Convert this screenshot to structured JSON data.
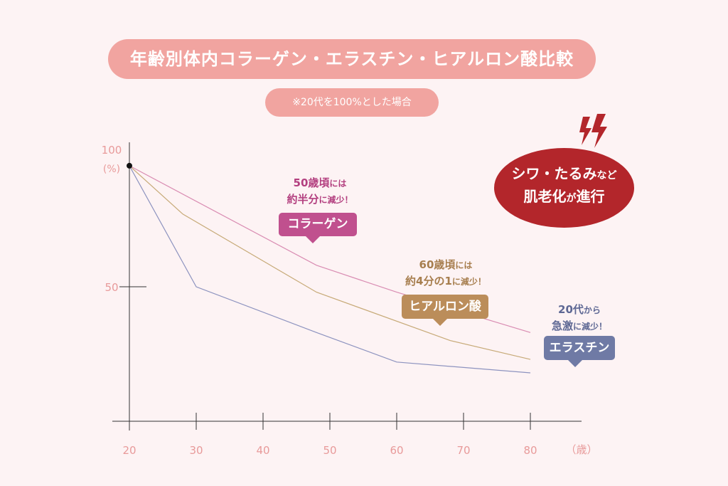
{
  "header": {
    "title": "年齢別体内コラーゲン・エラスチン・ヒアルロン酸比較",
    "subtitle": "※20代を100%とした場合"
  },
  "badge": {
    "line1_a": "シワ・たるみ",
    "line1_b": "など",
    "line2_a": "肌老化",
    "line2_b": "が",
    "line2_c": "進行",
    "color": "#b3262b"
  },
  "callouts": {
    "collagen": {
      "line1_a": "50歳頃",
      "line1_b": "には",
      "line2_a": "約半分",
      "line2_b": "に減少！",
      "label": "コラーゲン",
      "color": "#c0508e",
      "text_color": "#b33f7f"
    },
    "hyaluronic": {
      "line1_a": "60歳頃",
      "line1_b": "には",
      "line2_a": "約4分の1",
      "line2_b": "に減少！",
      "label": "ヒアルロン酸",
      "color": "#bb8d5a",
      "text_color": "#a77e4e"
    },
    "elastin": {
      "line1_a": "20代",
      "line1_b": "から",
      "line2_a": "急激",
      "line2_b": "に減少！",
      "label": "エラスチン",
      "color": "#6f7aa5",
      "text_color": "#5e6894"
    }
  },
  "chart_data": {
    "type": "line",
    "x": [
      20,
      28,
      30,
      48,
      60,
      68,
      80
    ],
    "xticks": [
      20,
      30,
      40,
      50,
      60,
      70,
      80
    ],
    "xunit": "（歳）",
    "yticks": [
      {
        "value": 100,
        "label": "100"
      },
      {
        "value": 50,
        "label": "50"
      }
    ],
    "yunit": "(%)",
    "xlim": [
      20,
      80
    ],
    "ylim": [
      0,
      100
    ],
    "series": [
      {
        "name": "コラーゲン",
        "color": "#d98cb2",
        "points": [
          [
            20,
            95
          ],
          [
            48,
            58
          ],
          [
            60,
            48
          ],
          [
            80,
            33
          ]
        ]
      },
      {
        "name": "ヒアルロン酸",
        "color": "#c7aa78",
        "points": [
          [
            20,
            95
          ],
          [
            28,
            77
          ],
          [
            48,
            48
          ],
          [
            68,
            30
          ],
          [
            80,
            23
          ]
        ]
      },
      {
        "name": "エラスチン",
        "color": "#8d93bf",
        "points": [
          [
            20,
            95
          ],
          [
            30,
            50
          ],
          [
            48,
            33
          ],
          [
            60,
            22
          ],
          [
            80,
            18
          ]
        ]
      }
    ],
    "start_marker": [
      20,
      95
    ],
    "axis_color": "#333333",
    "label_color": "#e89a9a"
  }
}
